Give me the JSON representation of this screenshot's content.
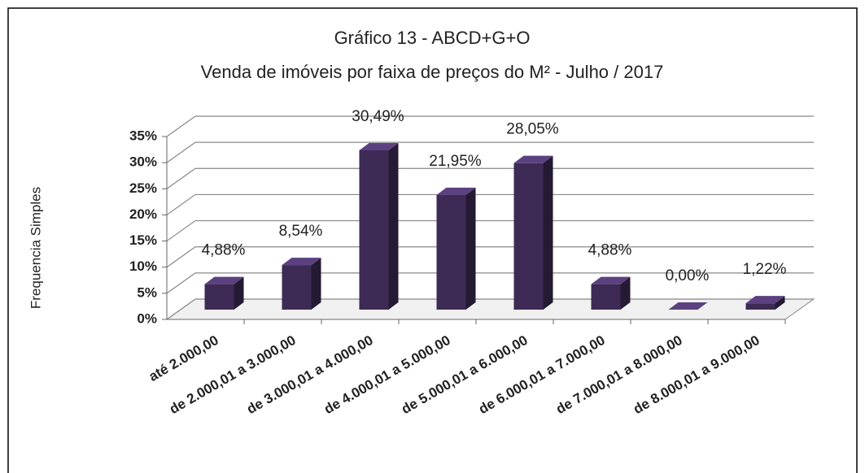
{
  "chart_data": {
    "type": "bar3d",
    "title": "Gráfico 13 - ABCD+G+O",
    "subtitle": "Venda de imóveis por faixa de preços do M² - Julho / 2017",
    "y_label": "Frequencia Simples",
    "categories": [
      "até 2.000,00",
      "de 2.000,01 a 3.000,00",
      "de 3.000,01 a 4.000,00",
      "de 4.000,01 a 5.000,00",
      "de 5.000,01 a 6.000,00",
      "de 6.000,01 a 7.000,00",
      "de 7.000,01 a 8.000,00",
      "de 8.000,01 a 9.000,00"
    ],
    "values": [
      4.88,
      8.54,
      30.49,
      21.95,
      28.05,
      4.88,
      0,
      1.22
    ],
    "value_labels": [
      "4,88%",
      "8,54%",
      "30,49%",
      "21,95%",
      "28,05%",
      "4,88%",
      "0,00%",
      "1,22%"
    ],
    "color": "#3d2b55",
    "ylim": [
      0,
      35
    ],
    "yticks": [
      {
        "value": 0,
        "label": "0%"
      },
      {
        "value": 5,
        "label": "5%"
      },
      {
        "value": 10,
        "label": "10%"
      },
      {
        "value": 15,
        "label": "15%"
      },
      {
        "value": 20,
        "label": "20%"
      },
      {
        "value": 25,
        "label": "25%"
      },
      {
        "value": 30,
        "label": "30%"
      },
      {
        "value": 35,
        "label": "35%"
      }
    ],
    "grid": true
  }
}
